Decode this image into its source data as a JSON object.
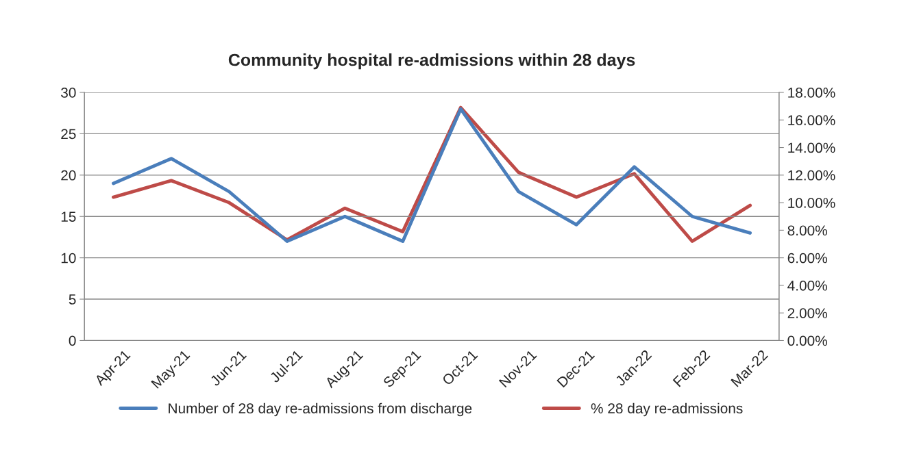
{
  "chart_data": {
    "type": "line",
    "title": "Community hospital re-admissions within 28 days",
    "categories": [
      "Apr-21",
      "May-21",
      "Jun-21",
      "Jul-21",
      "Aug-21",
      "Sep-21",
      "Oct-21",
      "Nov-21",
      "Dec-21",
      "Jan-22",
      "Feb-22",
      "Mar-22"
    ],
    "series": [
      {
        "name": "Number of 28 day re-admissions from discharge",
        "color": "#4a7ebb",
        "values": [
          19,
          22,
          18,
          12,
          15,
          12,
          28,
          18,
          14,
          21,
          15,
          13
        ]
      },
      {
        "name": "% 28 day re-admissions",
        "color": "#be4b48",
        "axis": "y2",
        "values": [
          10.4,
          11.6,
          10.0,
          7.3,
          9.6,
          7.9,
          16.9,
          12.2,
          10.4,
          12.1,
          7.2,
          9.8
        ]
      }
    ],
    "ylim": [
      0,
      30
    ],
    "yticks": [
      0,
      5,
      10,
      15,
      20,
      25,
      30
    ],
    "y2lim": [
      0,
      18
    ],
    "y2ticks": [
      {
        "value": 0,
        "label": "0.00%"
      },
      {
        "value": 2,
        "label": "2.00%"
      },
      {
        "value": 4,
        "label": "4.00%"
      },
      {
        "value": 6,
        "label": "6.00%"
      },
      {
        "value": 8,
        "label": "8.00%"
      },
      {
        "value": 10,
        "label": "10.00%"
      },
      {
        "value": 12,
        "label": "12.00%"
      },
      {
        "value": 14,
        "label": "14.00%"
      },
      {
        "value": 16,
        "label": "16.00%"
      },
      {
        "value": 18,
        "label": "18.00%"
      }
    ],
    "grid": "y",
    "legend": "bottom",
    "marker": "none",
    "line_style": "solid"
  }
}
